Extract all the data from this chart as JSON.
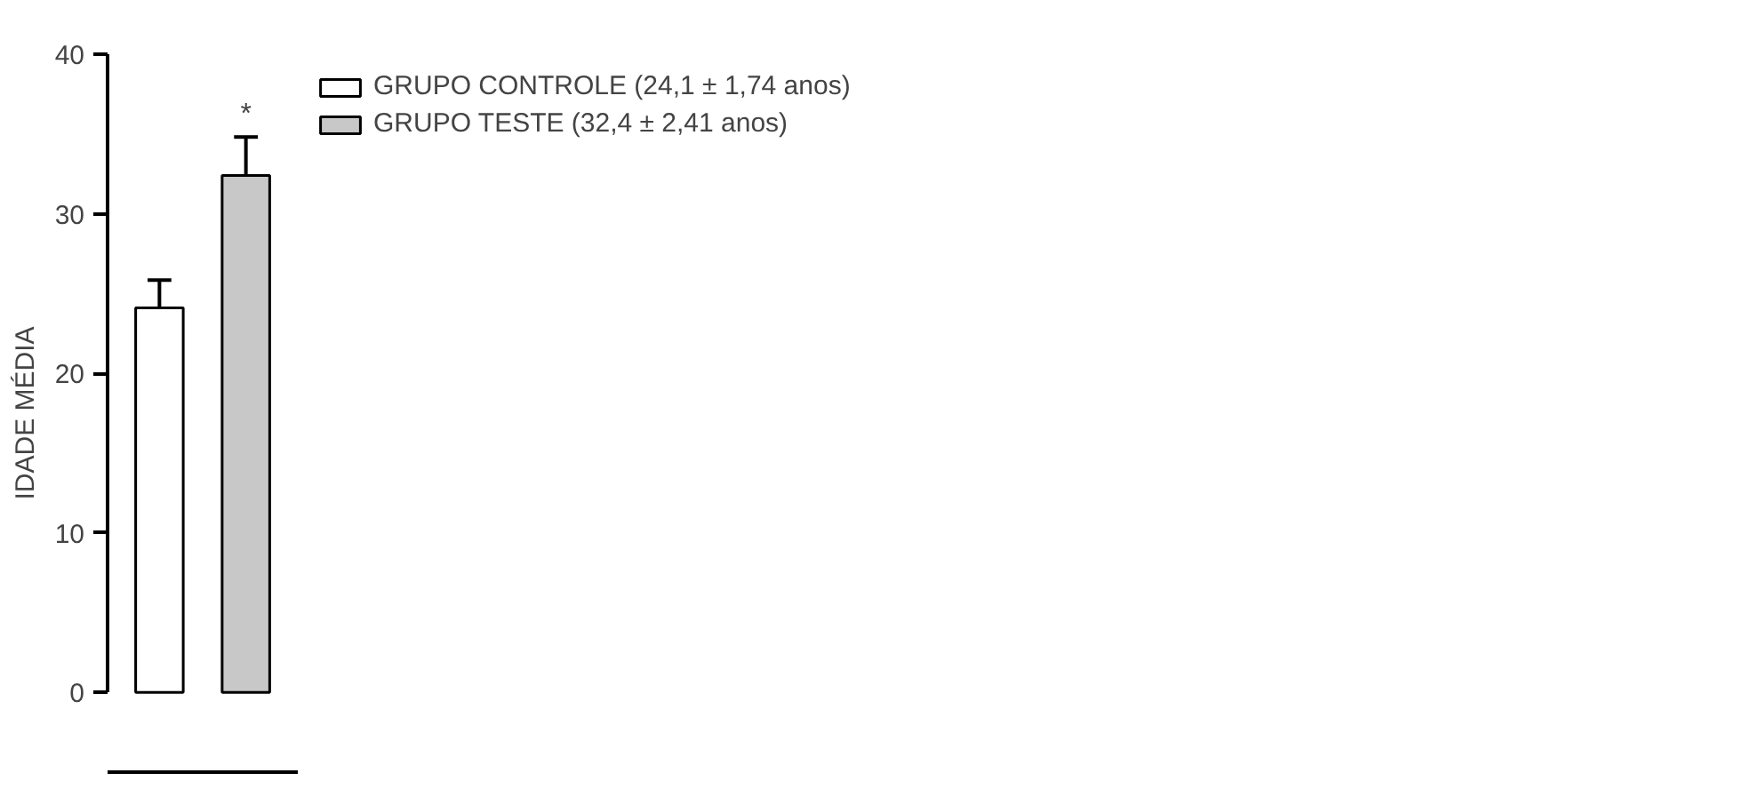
{
  "chart_data": {
    "type": "bar",
    "ylabel": "IDADE MÉDIA",
    "categories": [
      null,
      null
    ],
    "series": [
      {
        "name": "GRUPO CONTROLE (24,1 ± 1,74 anos)",
        "color": "#ffffff",
        "values": [
          24.1,
          null
        ],
        "errors": [
          [
            24.1,
            25.84
          ],
          null
        ]
      },
      {
        "name": "GRUPO TESTE (32,4 ± 2,41 anos)",
        "color": "#c8c8c8",
        "values": [
          null,
          32.4
        ],
        "errors": [
          null,
          [
            32.4,
            34.81
          ]
        ]
      }
    ],
    "ylim": [
      -5,
      40
    ],
    "yticks": [
      0,
      10,
      20,
      30,
      40
    ],
    "grid": false,
    "legend": "right",
    "annotations": [
      "*"
    ]
  }
}
